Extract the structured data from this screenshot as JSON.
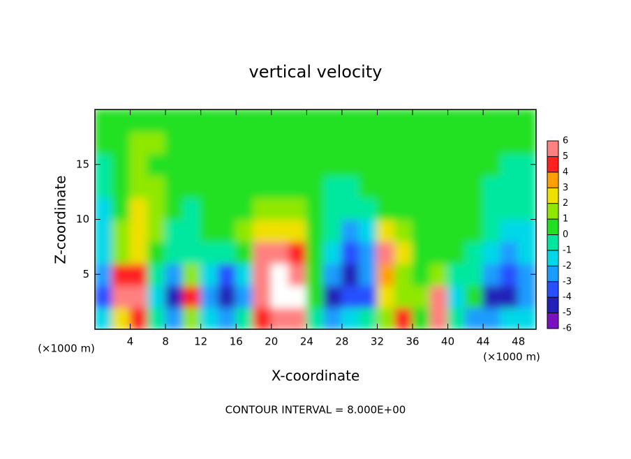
{
  "chart_data": {
    "type": "heatmap",
    "title": "vertical velocity",
    "x_label": "X-coordinate",
    "y_label": "Z-coordinate",
    "x_unit_label": "(×1000 m)",
    "footnote": "CONTOUR INTERVAL = 8.000E+00",
    "x": [
      1,
      3,
      5,
      7,
      9,
      11,
      13,
      15,
      17,
      19,
      21,
      23,
      25,
      27,
      29,
      31,
      33,
      35,
      37,
      39,
      41,
      43,
      45,
      47,
      49
    ],
    "y": [
      1,
      3,
      5,
      7,
      9,
      11,
      13,
      15,
      17,
      19
    ],
    "z": [
      [
        -2,
        2,
        4,
        -1,
        -3,
        1,
        -2,
        -3,
        -1,
        4,
        6,
        5,
        -1,
        -3,
        -2,
        -1,
        1,
        4,
        0,
        5,
        -1,
        -3,
        -3,
        -2,
        -2
      ],
      [
        -4,
        5,
        6,
        -2,
        -5,
        4,
        -3,
        -5,
        -3,
        5,
        7,
        7,
        0,
        -5,
        -4,
        -4,
        2,
        1,
        1,
        6,
        -2,
        0,
        -5,
        -5,
        -3
      ],
      [
        -3,
        4,
        4,
        -1,
        -3,
        1,
        -2,
        -4,
        -2,
        6,
        7,
        6,
        0,
        -3,
        -5,
        -3,
        3,
        1,
        0,
        1,
        -1,
        -1,
        -3,
        -4,
        -3
      ],
      [
        -2,
        1,
        2,
        0,
        -1,
        -1,
        -1,
        -1,
        0,
        5,
        5,
        4,
        0,
        -2,
        -4,
        -3,
        5,
        2,
        0,
        0,
        0,
        -1,
        -2,
        -3,
        -2
      ],
      [
        -2,
        1,
        2,
        1,
        -1,
        -1,
        0,
        0,
        1,
        2,
        2,
        2,
        0,
        -1,
        -3,
        -2,
        2,
        1,
        0,
        0,
        0,
        0,
        -1,
        -2,
        -2
      ],
      [
        -2,
        0,
        2,
        1,
        0,
        -1,
        0,
        0,
        0,
        1,
        1,
        1,
        0,
        -1,
        -1,
        -1,
        0,
        0,
        0,
        0,
        0,
        0,
        -1,
        -1,
        -1
      ],
      [
        -1,
        0,
        1,
        1,
        0,
        0,
        0,
        0,
        0,
        0,
        0,
        0,
        0,
        -1,
        -1,
        0,
        0,
        0,
        0,
        0,
        0,
        0,
        -1,
        -1,
        -1
      ],
      [
        -1,
        0,
        1,
        0,
        0,
        0,
        0,
        0,
        0,
        0,
        0,
        0,
        0,
        0,
        0,
        0,
        0,
        0,
        0,
        0,
        0,
        0,
        0,
        -1,
        -1
      ],
      [
        0,
        0,
        1,
        1,
        0,
        0,
        0,
        0,
        0,
        0,
        0,
        0,
        0,
        0,
        0,
        0,
        0,
        0,
        0,
        0,
        0,
        0,
        0,
        0,
        0
      ],
      [
        0,
        0,
        0,
        0,
        0,
        0,
        0,
        0,
        0,
        0,
        0,
        0,
        0,
        0,
        0,
        0,
        0,
        0,
        0,
        0,
        0,
        0,
        0,
        0,
        0
      ]
    ],
    "xlim": [
      0,
      50
    ],
    "ylim": [
      0,
      20
    ],
    "xticks": [
      4,
      8,
      12,
      16,
      20,
      24,
      28,
      32,
      36,
      40,
      44,
      48
    ],
    "yticks": [
      5,
      10,
      15
    ],
    "colorbar_ticks": [
      -6,
      -5,
      -4,
      -3,
      -2,
      -1,
      0,
      1,
      2,
      3,
      4,
      5,
      6
    ],
    "colors": [
      "#7a10c0",
      "#2020b8",
      "#2850ff",
      "#1a9cff",
      "#00d8e8",
      "#00e8a0",
      "#20e020",
      "#90e800",
      "#f0e000",
      "#ffa000",
      "#ff2020",
      "#ff8080"
    ]
  }
}
